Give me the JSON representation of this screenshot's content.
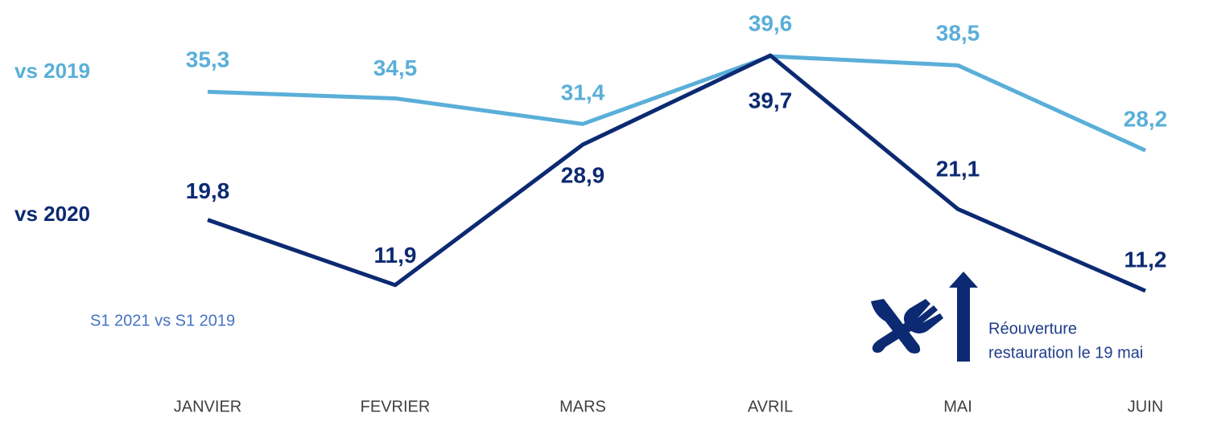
{
  "chart_data": {
    "type": "line",
    "categories": [
      "JANVIER",
      "FEVRIER",
      "MARS",
      "AVRIL",
      "MAI",
      "JUIN"
    ],
    "series": [
      {
        "name": "vs 2019",
        "color": "#5aafd9",
        "values": [
          35.3,
          34.5,
          31.4,
          39.6,
          38.5,
          28.2
        ],
        "value_labels": [
          "35,3",
          "34,5",
          "31,4",
          "39,6",
          "38,5",
          "28,2"
        ]
      },
      {
        "name": "vs 2020",
        "color": "#0c2a72",
        "values": [
          19.8,
          11.9,
          28.9,
          39.7,
          21.1,
          11.2
        ],
        "value_labels": [
          "19,8",
          "11,9",
          "28,9",
          "39,7",
          "21,1",
          "11,2"
        ]
      }
    ],
    "note": "S1 2021 vs S1 2019",
    "reopening_note": [
      "Réouverture",
      "restauration le 19 mai"
    ]
  }
}
